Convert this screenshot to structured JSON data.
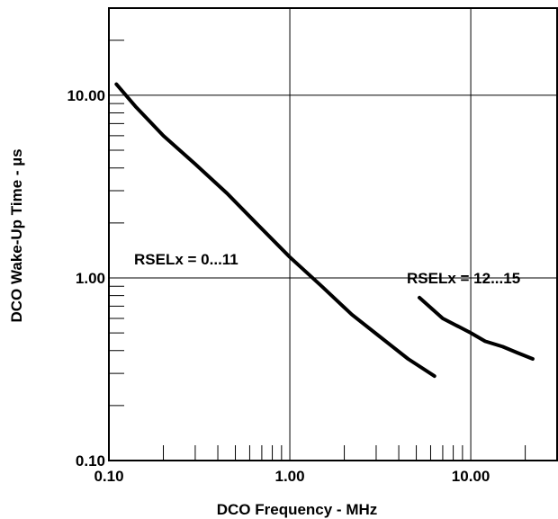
{
  "chart_data": {
    "type": "line",
    "xlabel": "DCO Frequency - MHz",
    "ylabel": "DCO Wake-Up Time - µs",
    "x_scale": "log",
    "y_scale": "log",
    "xlim": [
      0.1,
      30
    ],
    "ylim": [
      0.1,
      30
    ],
    "x_ticks": [
      "0.10",
      "1.00",
      "10.00"
    ],
    "y_ticks": [
      "0.10",
      "1.00",
      "10.00"
    ],
    "grid": true,
    "annotations": [
      {
        "text": "RSELx = 0...11"
      },
      {
        "text": "RSELx = 12...15"
      }
    ],
    "series": [
      {
        "x": [
          0.11,
          0.14,
          0.2,
          0.3,
          0.45,
          0.65,
          1.0,
          1.5,
          2.2,
          3.2,
          4.5,
          6.3
        ],
        "y": [
          11.5,
          8.7,
          6.0,
          4.2,
          2.9,
          2.0,
          1.3,
          0.9,
          0.63,
          0.47,
          0.36,
          0.29
        ]
      },
      {
        "x": [
          5.2,
          7.0,
          10.0,
          12.0,
          15.0,
          18.0,
          22.0
        ],
        "y": [
          0.78,
          0.6,
          0.5,
          0.45,
          0.42,
          0.39,
          0.36
        ]
      }
    ]
  }
}
